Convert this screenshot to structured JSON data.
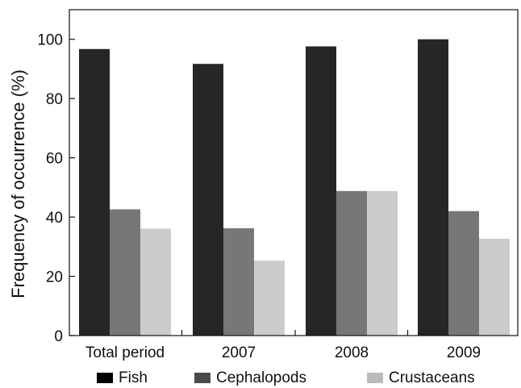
{
  "chart_data": {
    "type": "bar",
    "title": "",
    "xlabel": "",
    "ylabel": "Frequency of occurrence (%)",
    "categories": [
      "Total period",
      "2007",
      "2008",
      "2009"
    ],
    "series": [
      {
        "name": "Fish",
        "values": [
          96.7,
          91.7,
          97.6,
          100
        ]
      },
      {
        "name": "Cephalopods",
        "values": [
          42.6,
          36.2,
          48.8,
          42.0
        ]
      },
      {
        "name": "Crustaceans",
        "values": [
          36.1,
          25.3,
          48.8,
          32.7
        ]
      }
    ],
    "colors": [
      "#262626",
      "#777777",
      "#cccccc"
    ],
    "legend_swatch_colors": [
      "#000000",
      "#4a4a4a",
      "#bbbbbb"
    ],
    "ylim": [
      0,
      110
    ],
    "yticks": [
      0,
      20,
      40,
      60,
      80,
      100
    ],
    "grid": false,
    "legend_position": "bottom"
  }
}
